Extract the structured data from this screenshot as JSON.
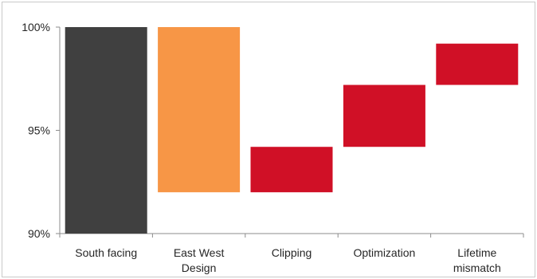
{
  "chart_data": {
    "type": "bar",
    "subtype": "waterfall",
    "title": "",
    "xlabel": "",
    "ylabel": "",
    "ylim": [
      90,
      100
    ],
    "yticks": [
      90,
      95,
      100
    ],
    "ytick_labels": [
      "90%",
      "95%",
      "100%"
    ],
    "grid": false,
    "legend": "none",
    "categories": [
      [
        "South facing"
      ],
      [
        "East West",
        "Design"
      ],
      [
        "Clipping"
      ],
      [
        "Optimization"
      ],
      [
        "Lifetime",
        "mismatch"
      ]
    ],
    "bars": [
      {
        "low": 90.0,
        "high": 100.0,
        "color": "#404040"
      },
      {
        "low": 92.0,
        "high": 100.0,
        "color": "#f79646"
      },
      {
        "low": 92.0,
        "high": 94.2,
        "color": "#d01026"
      },
      {
        "low": 94.2,
        "high": 97.2,
        "color": "#d01026"
      },
      {
        "low": 97.2,
        "high": 99.2,
        "color": "#d01026"
      }
    ]
  }
}
